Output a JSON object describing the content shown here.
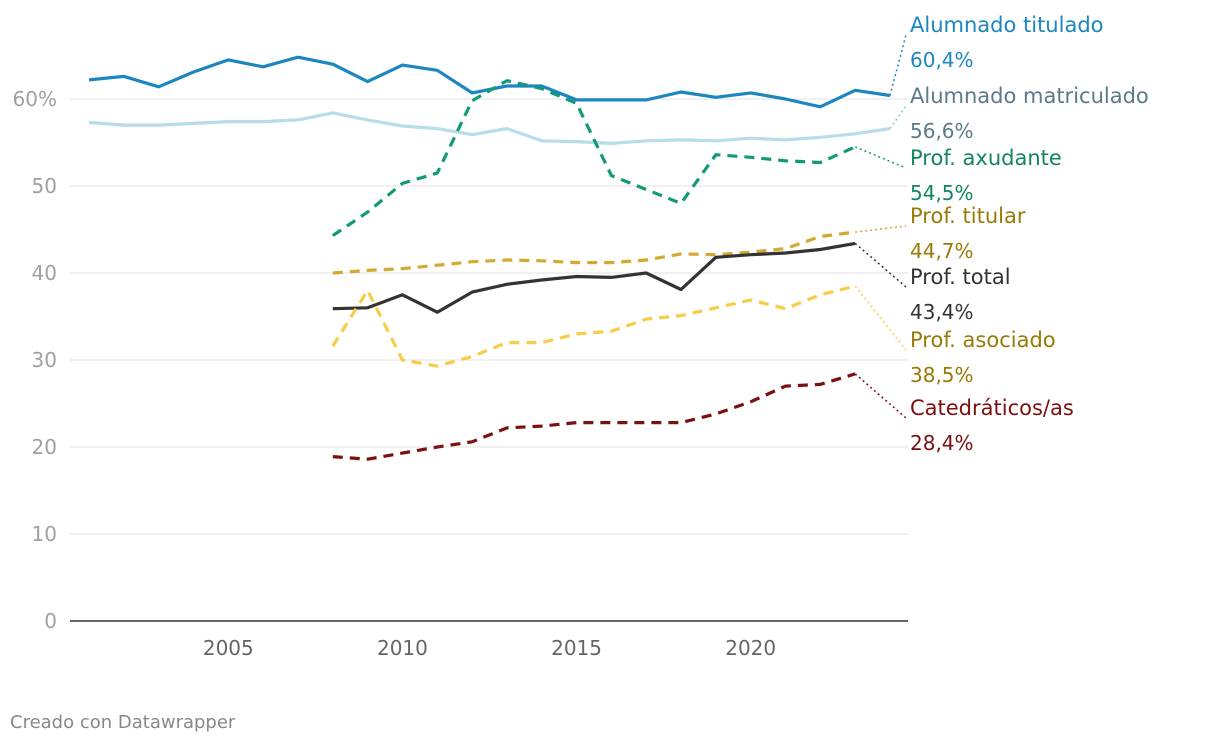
{
  "chart_data": {
    "type": "line",
    "ylim": [
      0,
      60
    ],
    "y_ticks": [
      {
        "value": 0,
        "label": "0"
      },
      {
        "value": 10,
        "label": "10"
      },
      {
        "value": 20,
        "label": "20"
      },
      {
        "value": 30,
        "label": "30"
      },
      {
        "value": 40,
        "label": "40"
      },
      {
        "value": 50,
        "label": "50"
      },
      {
        "value": 60,
        "label": "60%"
      }
    ],
    "xlim": [
      2001,
      2024
    ],
    "x_ticks": [
      {
        "value": 2005,
        "label": "2005"
      },
      {
        "value": 2010,
        "label": "2010"
      },
      {
        "value": 2015,
        "label": "2015"
      },
      {
        "value": 2020,
        "label": "2020"
      }
    ],
    "series": [
      {
        "name": "Alumnado titulado",
        "value_label": "60,4%",
        "color": "#1b86bf",
        "text_color": "#1b86bf",
        "dashed": false,
        "x": [
          2001,
          2002,
          2003,
          2004,
          2005,
          2006,
          2007,
          2008,
          2009,
          2010,
          2011,
          2012,
          2013,
          2014,
          2015,
          2016,
          2017,
          2018,
          2019,
          2020,
          2021,
          2022,
          2023,
          2024
        ],
        "values": [
          62.2,
          62.6,
          61.4,
          63.1,
          64.5,
          63.7,
          64.8,
          64.0,
          62.0,
          63.9,
          63.3,
          60.7,
          61.5,
          61.5,
          59.9,
          59.9,
          59.9,
          60.8,
          60.2,
          60.7,
          60.0,
          59.1,
          61.0,
          60.4
        ]
      },
      {
        "name": "Alumnado matriculado",
        "value_label": "56,6%",
        "color": "#b7dcea",
        "text_color": "#5b7a89",
        "dashed": false,
        "x": [
          2001,
          2002,
          2003,
          2004,
          2005,
          2006,
          2007,
          2008,
          2009,
          2010,
          2011,
          2012,
          2013,
          2014,
          2015,
          2016,
          2017,
          2018,
          2019,
          2020,
          2021,
          2022,
          2023,
          2024
        ],
        "values": [
          57.3,
          57.0,
          57.0,
          57.2,
          57.4,
          57.4,
          57.6,
          58.4,
          57.6,
          56.9,
          56.6,
          55.9,
          56.6,
          55.2,
          55.1,
          54.9,
          55.2,
          55.3,
          55.2,
          55.5,
          55.3,
          55.6,
          56.0,
          56.6
        ]
      },
      {
        "name": "Prof. axudante",
        "value_label": "54,5%",
        "color": "#129a78",
        "text_color": "#12855f",
        "dashed": true,
        "x": [
          2008,
          2009,
          2010,
          2011,
          2012,
          2013,
          2014,
          2015,
          2016,
          2017,
          2018,
          2019,
          2020,
          2021,
          2022,
          2023
        ],
        "values": [
          44.3,
          47.0,
          50.3,
          51.5,
          59.8,
          62.1,
          61.2,
          59.5,
          51.2,
          49.6,
          48.0,
          53.6,
          53.3,
          52.9,
          52.7,
          54.5
        ]
      },
      {
        "name": "Prof. titular",
        "value_label": "44,7%",
        "color": "#d3a92f",
        "text_color": "#9a7a06",
        "dashed": true,
        "x": [
          2008,
          2009,
          2010,
          2011,
          2012,
          2013,
          2014,
          2015,
          2016,
          2017,
          2018,
          2019,
          2020,
          2021,
          2022,
          2023
        ],
        "values": [
          40.0,
          40.3,
          40.5,
          40.9,
          41.3,
          41.5,
          41.4,
          41.2,
          41.2,
          41.5,
          42.2,
          42.1,
          42.4,
          42.8,
          44.2,
          44.7
        ]
      },
      {
        "name": "Prof. total",
        "value_label": "43,4%",
        "color": "#333333",
        "text_color": "#333333",
        "dashed": false,
        "x": [
          2008,
          2009,
          2010,
          2011,
          2012,
          2013,
          2014,
          2015,
          2016,
          2017,
          2018,
          2019,
          2020,
          2021,
          2022,
          2023
        ],
        "values": [
          35.9,
          36.0,
          37.5,
          35.5,
          37.8,
          38.7,
          39.2,
          39.6,
          39.5,
          40.0,
          38.1,
          41.8,
          42.1,
          42.3,
          42.7,
          43.4
        ]
      },
      {
        "name": "Prof. asociado",
        "value_label": "38,5%",
        "color": "#f7cc47",
        "text_color": "#9a7a06",
        "dashed": true,
        "x": [
          2008,
          2009,
          2010,
          2011,
          2012,
          2013,
          2014,
          2015,
          2016,
          2017,
          2018,
          2019,
          2020,
          2021,
          2022,
          2023
        ],
        "values": [
          31.6,
          38.0,
          30.0,
          29.3,
          30.4,
          32.0,
          32.0,
          33.0,
          33.3,
          34.7,
          35.1,
          36.0,
          36.9,
          35.9,
          37.5,
          38.5
        ]
      },
      {
        "name": "Catedráticos/as",
        "value_label": "28,4%",
        "color": "#7a1010",
        "text_color": "#7a1010",
        "dashed": true,
        "x": [
          2008,
          2009,
          2010,
          2011,
          2012,
          2013,
          2014,
          2015,
          2016,
          2017,
          2018,
          2019,
          2020,
          2021,
          2022,
          2023
        ],
        "values": [
          18.9,
          18.6,
          19.3,
          20.0,
          20.6,
          22.2,
          22.4,
          22.8,
          22.8,
          22.8,
          22.8,
          23.8,
          25.2,
          27.0,
          27.2,
          28.4
        ]
      }
    ]
  },
  "credit": "Creado con Datawrapper"
}
